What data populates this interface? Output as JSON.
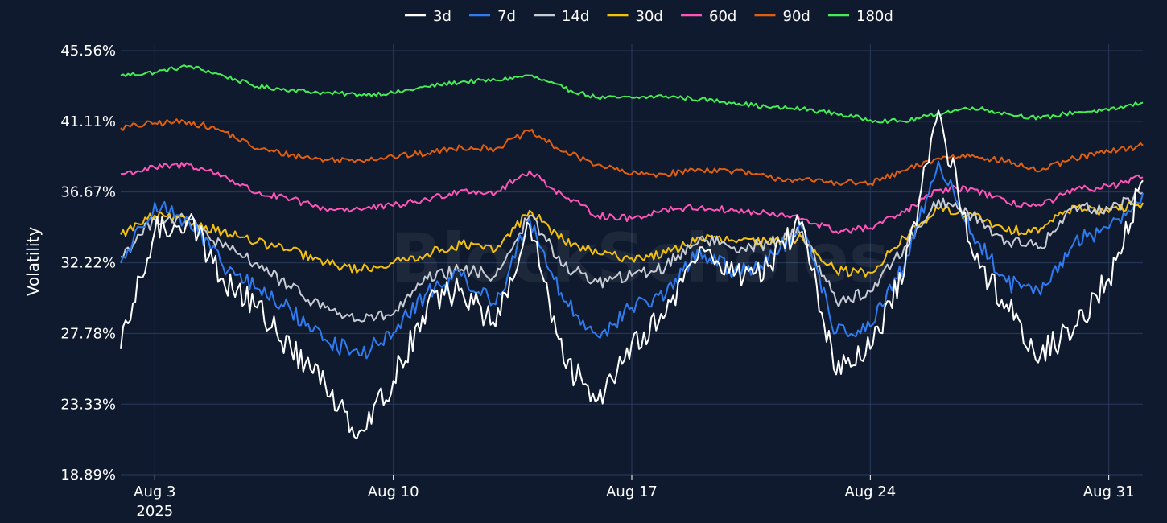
{
  "chart_data": {
    "type": "line",
    "title": "",
    "xlabel": "",
    "ylabel": "Volatility",
    "watermark": "BlockScholes",
    "legend_position": "top-center",
    "grid": true,
    "x_range": [
      "2025-08-02",
      "2025-09-01"
    ],
    "ylim": [
      18.89,
      45.56
    ],
    "y_ticks": [
      {
        "value": 18.89,
        "label": "18.89%"
      },
      {
        "value": 23.33,
        "label": "23.33%"
      },
      {
        "value": 27.78,
        "label": "27.78%"
      },
      {
        "value": 32.22,
        "label": "32.22%"
      },
      {
        "value": 36.67,
        "label": "36.67%"
      },
      {
        "value": 41.11,
        "label": "41.11%"
      },
      {
        "value": 45.56,
        "label": "45.56%"
      }
    ],
    "x_ticks": [
      {
        "date": "2025-08-03",
        "label": "Aug 3",
        "sublabel": "2025"
      },
      {
        "date": "2025-08-10",
        "label": "Aug 10",
        "sublabel": ""
      },
      {
        "date": "2025-08-17",
        "label": "Aug 17",
        "sublabel": ""
      },
      {
        "date": "2025-08-24",
        "label": "Aug 24",
        "sublabel": ""
      },
      {
        "date": "2025-08-31",
        "label": "Aug 31",
        "sublabel": ""
      }
    ],
    "series": [
      {
        "name": "180d",
        "color": "#44ee55",
        "points": [
          [
            "2025-08-02",
            44.0
          ],
          [
            "2025-08-03",
            44.2
          ],
          [
            "2025-08-04",
            44.6
          ],
          [
            "2025-08-05",
            44.0
          ],
          [
            "2025-08-06",
            43.3
          ],
          [
            "2025-08-07",
            43.1
          ],
          [
            "2025-08-08",
            42.9
          ],
          [
            "2025-08-09",
            42.8
          ],
          [
            "2025-08-10",
            42.9
          ],
          [
            "2025-08-11",
            43.3
          ],
          [
            "2025-08-12",
            43.6
          ],
          [
            "2025-08-13",
            43.7
          ],
          [
            "2025-08-14",
            44.0
          ],
          [
            "2025-08-15",
            43.2
          ],
          [
            "2025-08-16",
            42.6
          ],
          [
            "2025-08-17",
            42.6
          ],
          [
            "2025-08-18",
            42.7
          ],
          [
            "2025-08-19",
            42.5
          ],
          [
            "2025-08-20",
            42.3
          ],
          [
            "2025-08-21",
            42.0
          ],
          [
            "2025-08-22",
            41.9
          ],
          [
            "2025-08-23",
            41.6
          ],
          [
            "2025-08-24",
            41.2
          ],
          [
            "2025-08-25",
            41.1
          ],
          [
            "2025-08-26",
            41.6
          ],
          [
            "2025-08-27",
            42.0
          ],
          [
            "2025-08-28",
            41.6
          ],
          [
            "2025-08-29",
            41.3
          ],
          [
            "2025-08-30",
            41.7
          ],
          [
            "2025-08-31",
            41.8
          ],
          [
            "2025-09-01",
            42.3
          ]
        ]
      },
      {
        "name": "90d",
        "color": "#e06010",
        "points": [
          [
            "2025-08-02",
            40.7
          ],
          [
            "2025-08-03",
            41.0
          ],
          [
            "2025-08-04",
            41.1
          ],
          [
            "2025-08-05",
            40.5
          ],
          [
            "2025-08-06",
            39.4
          ],
          [
            "2025-08-07",
            39.0
          ],
          [
            "2025-08-08",
            38.7
          ],
          [
            "2025-08-09",
            38.7
          ],
          [
            "2025-08-10",
            38.9
          ],
          [
            "2025-08-11",
            39.1
          ],
          [
            "2025-08-12",
            39.5
          ],
          [
            "2025-08-13",
            39.4
          ],
          [
            "2025-08-14",
            40.5
          ],
          [
            "2025-08-15",
            39.2
          ],
          [
            "2025-08-16",
            38.4
          ],
          [
            "2025-08-17",
            37.8
          ],
          [
            "2025-08-18",
            37.8
          ],
          [
            "2025-08-19",
            38.1
          ],
          [
            "2025-08-20",
            38.0
          ],
          [
            "2025-08-21",
            37.6
          ],
          [
            "2025-08-22",
            37.4
          ],
          [
            "2025-08-23",
            37.3
          ],
          [
            "2025-08-24",
            37.2
          ],
          [
            "2025-08-25",
            38.0
          ],
          [
            "2025-08-26",
            38.8
          ],
          [
            "2025-08-27",
            39.0
          ],
          [
            "2025-08-28",
            38.6
          ],
          [
            "2025-08-29",
            38.0
          ],
          [
            "2025-08-30",
            38.8
          ],
          [
            "2025-08-31",
            39.2
          ],
          [
            "2025-09-01",
            39.6
          ]
        ]
      },
      {
        "name": "60d",
        "color": "#ff55b8",
        "points": [
          [
            "2025-08-02",
            37.8
          ],
          [
            "2025-08-03",
            38.2
          ],
          [
            "2025-08-04",
            38.4
          ],
          [
            "2025-08-05",
            37.7
          ],
          [
            "2025-08-06",
            36.6
          ],
          [
            "2025-08-07",
            36.2
          ],
          [
            "2025-08-08",
            35.6
          ],
          [
            "2025-08-09",
            35.6
          ],
          [
            "2025-08-10",
            35.8
          ],
          [
            "2025-08-11",
            36.2
          ],
          [
            "2025-08-12",
            36.8
          ],
          [
            "2025-08-13",
            36.6
          ],
          [
            "2025-08-14",
            38.0
          ],
          [
            "2025-08-15",
            36.4
          ],
          [
            "2025-08-16",
            35.2
          ],
          [
            "2025-08-17",
            35.0
          ],
          [
            "2025-08-18",
            35.6
          ],
          [
            "2025-08-19",
            35.7
          ],
          [
            "2025-08-20",
            35.5
          ],
          [
            "2025-08-21",
            35.3
          ],
          [
            "2025-08-22",
            35.0
          ],
          [
            "2025-08-23",
            34.2
          ],
          [
            "2025-08-24",
            34.4
          ],
          [
            "2025-08-25",
            35.4
          ],
          [
            "2025-08-26",
            36.8
          ],
          [
            "2025-08-27",
            36.9
          ],
          [
            "2025-08-28",
            36.0
          ],
          [
            "2025-08-29",
            35.8
          ],
          [
            "2025-08-30",
            36.8
          ],
          [
            "2025-08-31",
            37.0
          ],
          [
            "2025-09-01",
            37.6
          ]
        ]
      },
      {
        "name": "30d",
        "color": "#f4c20d",
        "points": [
          [
            "2025-08-02",
            34.0
          ],
          [
            "2025-08-03",
            35.2
          ],
          [
            "2025-08-04",
            34.8
          ],
          [
            "2025-08-05",
            34.2
          ],
          [
            "2025-08-06",
            33.5
          ],
          [
            "2025-08-07",
            33.0
          ],
          [
            "2025-08-08",
            32.2
          ],
          [
            "2025-08-09",
            31.8
          ],
          [
            "2025-08-10",
            32.2
          ],
          [
            "2025-08-11",
            32.8
          ],
          [
            "2025-08-12",
            33.4
          ],
          [
            "2025-08-13",
            33.0
          ],
          [
            "2025-08-14",
            35.5
          ],
          [
            "2025-08-15",
            33.6
          ],
          [
            "2025-08-16",
            32.8
          ],
          [
            "2025-08-17",
            32.5
          ],
          [
            "2025-08-18",
            32.8
          ],
          [
            "2025-08-19",
            33.8
          ],
          [
            "2025-08-20",
            33.6
          ],
          [
            "2025-08-21",
            33.5
          ],
          [
            "2025-08-22",
            33.8
          ],
          [
            "2025-08-23",
            31.7
          ],
          [
            "2025-08-24",
            31.6
          ],
          [
            "2025-08-25",
            33.8
          ],
          [
            "2025-08-26",
            35.6
          ],
          [
            "2025-08-27",
            35.2
          ],
          [
            "2025-08-28",
            34.2
          ],
          [
            "2025-08-29",
            34.4
          ],
          [
            "2025-08-30",
            35.8
          ],
          [
            "2025-08-31",
            35.4
          ],
          [
            "2025-09-01",
            36.0
          ]
        ]
      },
      {
        "name": "14d",
        "color": "#c8ccd4",
        "points": [
          [
            "2025-08-02",
            32.6
          ],
          [
            "2025-08-03",
            35.0
          ],
          [
            "2025-08-04",
            34.9
          ],
          [
            "2025-08-05",
            33.2
          ],
          [
            "2025-08-06",
            32.2
          ],
          [
            "2025-08-07",
            30.6
          ],
          [
            "2025-08-08",
            29.4
          ],
          [
            "2025-08-09",
            28.6
          ],
          [
            "2025-08-10",
            29.0
          ],
          [
            "2025-08-11",
            31.2
          ],
          [
            "2025-08-12",
            31.8
          ],
          [
            "2025-08-13",
            31.4
          ],
          [
            "2025-08-14",
            35.2
          ],
          [
            "2025-08-15",
            32.0
          ],
          [
            "2025-08-16",
            31.0
          ],
          [
            "2025-08-17",
            31.4
          ],
          [
            "2025-08-18",
            32.0
          ],
          [
            "2025-08-19",
            33.8
          ],
          [
            "2025-08-20",
            33.2
          ],
          [
            "2025-08-21",
            33.4
          ],
          [
            "2025-08-22",
            34.2
          ],
          [
            "2025-08-23",
            29.8
          ],
          [
            "2025-08-24",
            30.4
          ],
          [
            "2025-08-25",
            33.2
          ],
          [
            "2025-08-26",
            36.2
          ],
          [
            "2025-08-27",
            35.2
          ],
          [
            "2025-08-28",
            33.6
          ],
          [
            "2025-08-29",
            33.2
          ],
          [
            "2025-08-30",
            35.8
          ],
          [
            "2025-08-31",
            35.6
          ],
          [
            "2025-09-01",
            36.6
          ]
        ]
      },
      {
        "name": "7d",
        "color": "#2f7bf0",
        "points": [
          [
            "2025-08-02",
            32.2
          ],
          [
            "2025-08-03",
            36.0
          ],
          [
            "2025-08-04",
            34.8
          ],
          [
            "2025-08-05",
            32.0
          ],
          [
            "2025-08-06",
            30.6
          ],
          [
            "2025-08-07",
            29.2
          ],
          [
            "2025-08-08",
            27.4
          ],
          [
            "2025-08-09",
            26.4
          ],
          [
            "2025-08-10",
            27.8
          ],
          [
            "2025-08-11",
            30.4
          ],
          [
            "2025-08-12",
            31.4
          ],
          [
            "2025-08-13",
            29.6
          ],
          [
            "2025-08-14",
            35.0
          ],
          [
            "2025-08-15",
            29.8
          ],
          [
            "2025-08-16",
            27.6
          ],
          [
            "2025-08-17",
            29.4
          ],
          [
            "2025-08-18",
            30.2
          ],
          [
            "2025-08-19",
            33.0
          ],
          [
            "2025-08-20",
            31.6
          ],
          [
            "2025-08-21",
            32.4
          ],
          [
            "2025-08-22",
            34.4
          ],
          [
            "2025-08-23",
            27.8
          ],
          [
            "2025-08-24",
            28.2
          ],
          [
            "2025-08-25",
            32.0
          ],
          [
            "2025-08-26",
            38.6
          ],
          [
            "2025-08-27",
            34.0
          ],
          [
            "2025-08-28",
            31.0
          ],
          [
            "2025-08-29",
            30.2
          ],
          [
            "2025-08-30",
            33.6
          ],
          [
            "2025-08-31",
            34.4
          ],
          [
            "2025-09-01",
            36.6
          ]
        ]
      },
      {
        "name": "3d",
        "color": "#ffffff",
        "points": [
          [
            "2025-08-02",
            26.8
          ],
          [
            "2025-08-03",
            34.2
          ],
          [
            "2025-08-04",
            35.0
          ],
          [
            "2025-08-05",
            31.2
          ],
          [
            "2025-08-06",
            29.4
          ],
          [
            "2025-08-07",
            26.8
          ],
          [
            "2025-08-08",
            24.6
          ],
          [
            "2025-08-09",
            21.6
          ],
          [
            "2025-08-10",
            24.8
          ],
          [
            "2025-08-11",
            29.6
          ],
          [
            "2025-08-12",
            30.6
          ],
          [
            "2025-08-13",
            28.2
          ],
          [
            "2025-08-14",
            34.6
          ],
          [
            "2025-08-15",
            26.0
          ],
          [
            "2025-08-16",
            23.6
          ],
          [
            "2025-08-17",
            27.2
          ],
          [
            "2025-08-18",
            29.0
          ],
          [
            "2025-08-19",
            33.2
          ],
          [
            "2025-08-20",
            31.4
          ],
          [
            "2025-08-21",
            32.0
          ],
          [
            "2025-08-22",
            34.8
          ],
          [
            "2025-08-23",
            25.2
          ],
          [
            "2025-08-24",
            26.8
          ],
          [
            "2025-08-25",
            31.6
          ],
          [
            "2025-08-26",
            41.8
          ],
          [
            "2025-08-27",
            32.8
          ],
          [
            "2025-08-28",
            29.6
          ],
          [
            "2025-08-29",
            26.4
          ],
          [
            "2025-08-30",
            28.2
          ],
          [
            "2025-08-31",
            31.2
          ],
          [
            "2025-09-01",
            37.4
          ]
        ]
      }
    ],
    "legend_order": [
      "3d",
      "7d",
      "14d",
      "30d",
      "60d",
      "90d",
      "180d"
    ]
  }
}
